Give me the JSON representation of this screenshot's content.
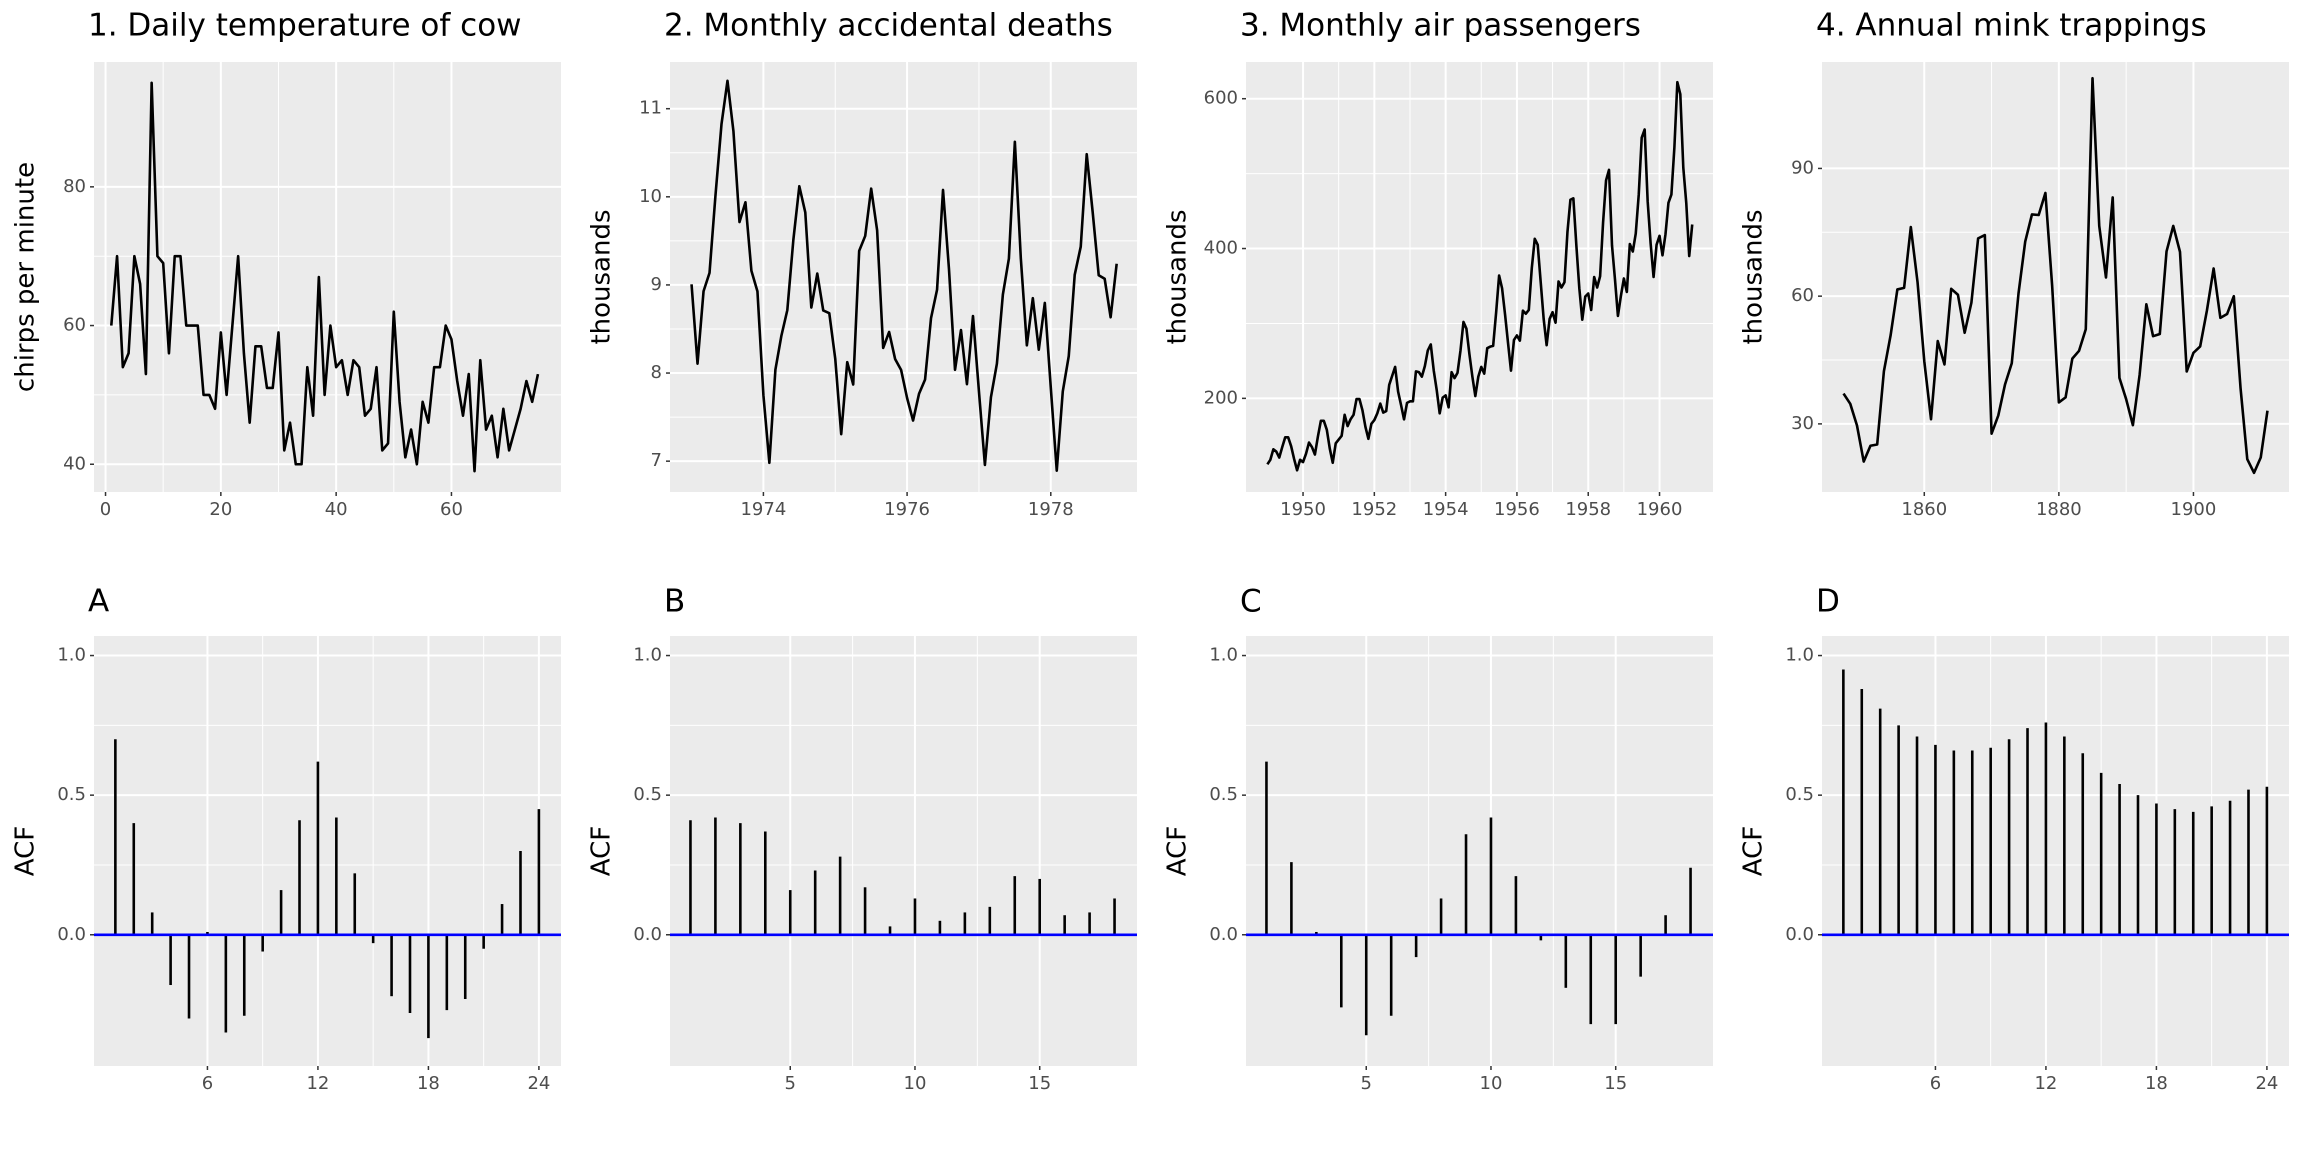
{
  "chart_data": [
    {
      "type": "line",
      "title": "1. Daily temperature of cow",
      "ylabel": "chirps per minute",
      "color": "#000000",
      "grid": true,
      "x": [
        1,
        2,
        3,
        4,
        5,
        6,
        7,
        8,
        9,
        10,
        11,
        12,
        13,
        14,
        15,
        16,
        17,
        18,
        19,
        20,
        21,
        22,
        23,
        24,
        25,
        26,
        27,
        28,
        29,
        30,
        31,
        32,
        33,
        34,
        35,
        36,
        37,
        38,
        39,
        40,
        41,
        42,
        43,
        44,
        45,
        46,
        47,
        48,
        49,
        50,
        51,
        52,
        53,
        54,
        55,
        56,
        57,
        58,
        59,
        60,
        61,
        62,
        63,
        64,
        65,
        66,
        67,
        68,
        69,
        70,
        71,
        72,
        73,
        74,
        75
      ],
      "values": [
        60,
        70,
        54,
        56,
        70,
        66,
        53,
        95,
        70,
        69,
        56,
        70,
        70,
        60,
        60,
        60,
        50,
        50,
        48,
        59,
        50,
        60,
        70,
        56,
        46,
        57,
        57,
        51,
        51,
        59,
        42,
        46,
        40,
        40,
        54,
        47,
        67,
        50,
        60,
        54,
        55,
        50,
        55,
        54,
        47,
        48,
        54,
        42,
        43,
        62,
        49,
        41,
        45,
        40,
        49,
        46,
        54,
        54,
        60,
        58,
        52,
        47,
        53,
        39,
        55,
        45,
        47,
        41,
        48,
        42,
        45,
        48,
        52,
        49,
        53
      ],
      "xlim": [
        -2,
        79
      ],
      "ylim": [
        36,
        98
      ],
      "xticks": [
        0,
        20,
        40,
        60
      ],
      "yticks": [
        40,
        60,
        80
      ]
    },
    {
      "type": "line",
      "title": "2. Monthly accidental deaths",
      "ylabel": "thousands",
      "color": "#000000",
      "grid": true,
      "x": [
        1973,
        1973.083,
        1973.167,
        1973.25,
        1973.333,
        1973.417,
        1973.5,
        1973.583,
        1973.667,
        1973.75,
        1973.833,
        1973.917,
        1974,
        1974.083,
        1974.167,
        1974.25,
        1974.333,
        1974.417,
        1974.5,
        1974.583,
        1974.667,
        1974.75,
        1974.833,
        1974.917,
        1975,
        1975.083,
        1975.167,
        1975.25,
        1975.333,
        1975.417,
        1975.5,
        1975.583,
        1975.667,
        1975.75,
        1975.833,
        1975.917,
        1976,
        1976.083,
        1976.167,
        1976.25,
        1976.333,
        1976.417,
        1976.5,
        1976.583,
        1976.667,
        1976.75,
        1976.833,
        1976.917,
        1977,
        1977.083,
        1977.167,
        1977.25,
        1977.333,
        1977.417,
        1977.5,
        1977.583,
        1977.667,
        1977.75,
        1977.833,
        1977.917,
        1978,
        1978.083,
        1978.167,
        1978.25,
        1978.333,
        1978.417,
        1978.5,
        1978.583,
        1978.667,
        1978.75,
        1978.833,
        1978.917
      ],
      "values": [
        9.007,
        8.106,
        8.928,
        9.137,
        10.017,
        10.826,
        11.317,
        10.744,
        9.713,
        9.938,
        9.161,
        8.927,
        7.75,
        6.981,
        8.038,
        8.422,
        8.714,
        9.512,
        10.12,
        9.823,
        8.743,
        9.129,
        8.71,
        8.68,
        8.162,
        7.306,
        8.124,
        7.87,
        9.387,
        9.556,
        10.093,
        9.62,
        8.285,
        8.466,
        8.16,
        8.034,
        7.717,
        7.461,
        7.767,
        7.925,
        8.623,
        8.945,
        10.078,
        9.179,
        8.037,
        8.488,
        7.874,
        8.647,
        7.792,
        6.957,
        7.726,
        8.106,
        8.89,
        9.299,
        10.625,
        9.302,
        8.314,
        8.85,
        8.265,
        8.796,
        7.836,
        6.892,
        7.791,
        8.192,
        9.115,
        9.434,
        10.484,
        9.827,
        9.11,
        9.07,
        8.633,
        9.24
      ],
      "xlim": [
        1972.7,
        1979.2
      ],
      "ylim": [
        6.65,
        11.53
      ],
      "xticks": [
        1974,
        1976,
        1978
      ],
      "yticks": [
        7,
        8,
        9,
        10,
        11
      ]
    },
    {
      "type": "line",
      "title": "3. Monthly air passengers",
      "ylabel": "thousands",
      "color": "#000000",
      "grid": true,
      "x": [
        1949,
        1949.083,
        1949.167,
        1949.25,
        1949.333,
        1949.417,
        1949.5,
        1949.583,
        1949.667,
        1949.75,
        1949.833,
        1949.917,
        1950,
        1950.083,
        1950.167,
        1950.25,
        1950.333,
        1950.417,
        1950.5,
        1950.583,
        1950.667,
        1950.75,
        1950.833,
        1950.917,
        1951,
        1951.083,
        1951.167,
        1951.25,
        1951.333,
        1951.417,
        1951.5,
        1951.583,
        1951.667,
        1951.75,
        1951.833,
        1951.917,
        1952,
        1952.083,
        1952.167,
        1952.25,
        1952.333,
        1952.417,
        1952.5,
        1952.583,
        1952.667,
        1952.75,
        1952.833,
        1952.917,
        1953,
        1953.083,
        1953.167,
        1953.25,
        1953.333,
        1953.417,
        1953.5,
        1953.583,
        1953.667,
        1953.75,
        1953.833,
        1953.917,
        1954,
        1954.083,
        1954.167,
        1954.25,
        1954.333,
        1954.417,
        1954.5,
        1954.583,
        1954.667,
        1954.75,
        1954.833,
        1954.917,
        1955,
        1955.083,
        1955.167,
        1955.25,
        1955.333,
        1955.417,
        1955.5,
        1955.583,
        1955.667,
        1955.75,
        1955.833,
        1955.917,
        1956,
        1956.083,
        1956.167,
        1956.25,
        1956.333,
        1956.417,
        1956.5,
        1956.583,
        1956.667,
        1956.75,
        1956.833,
        1956.917,
        1957,
        1957.083,
        1957.167,
        1957.25,
        1957.333,
        1957.417,
        1957.5,
        1957.583,
        1957.667,
        1957.75,
        1957.833,
        1957.917,
        1958,
        1958.083,
        1958.167,
        1958.25,
        1958.333,
        1958.417,
        1958.5,
        1958.583,
        1958.667,
        1958.75,
        1958.833,
        1958.917,
        1959,
        1959.083,
        1959.167,
        1959.25,
        1959.333,
        1959.417,
        1959.5,
        1959.583,
        1959.667,
        1959.75,
        1959.833,
        1959.917,
        1960,
        1960.083,
        1960.167,
        1960.25,
        1960.333,
        1960.417,
        1960.5,
        1960.583,
        1960.667,
        1960.75,
        1960.833,
        1960.917
      ],
      "values": [
        112,
        118,
        132,
        129,
        121,
        135,
        148,
        148,
        136,
        119,
        104,
        118,
        115,
        126,
        141,
        135,
        125,
        149,
        170,
        170,
        158,
        133,
        114,
        140,
        145,
        150,
        178,
        163,
        172,
        178,
        199,
        199,
        184,
        162,
        146,
        166,
        171,
        180,
        193,
        181,
        183,
        218,
        230,
        242,
        209,
        191,
        172,
        194,
        196,
        196,
        236,
        235,
        229,
        243,
        264,
        272,
        237,
        211,
        180,
        201,
        204,
        188,
        235,
        227,
        234,
        264,
        302,
        293,
        259,
        229,
        203,
        229,
        242,
        233,
        267,
        269,
        270,
        315,
        364,
        347,
        312,
        274,
        237,
        278,
        284,
        277,
        317,
        313,
        318,
        374,
        413,
        405,
        355,
        306,
        271,
        306,
        315,
        301,
        356,
        348,
        355,
        422,
        465,
        467,
        404,
        347,
        305,
        336,
        340,
        318,
        362,
        348,
        363,
        435,
        491,
        505,
        404,
        359,
        310,
        337,
        360,
        342,
        406,
        396,
        420,
        472,
        548,
        559,
        463,
        407,
        362,
        405,
        417,
        391,
        419,
        461,
        472,
        535,
        622,
        606,
        508,
        461,
        390,
        432
      ],
      "xlim": [
        1948.4,
        1961.5
      ],
      "ylim": [
        75,
        649
      ],
      "xticks": [
        1950,
        1952,
        1954,
        1956,
        1958,
        1960
      ],
      "yticks": [
        200,
        400,
        600
      ]
    },
    {
      "type": "line",
      "title": "4. Annual mink trappings",
      "ylabel": "thousands",
      "color": "#000000",
      "grid": true,
      "x": [
        1848,
        1849,
        1850,
        1851,
        1852,
        1853,
        1854,
        1855,
        1856,
        1857,
        1858,
        1859,
        1860,
        1861,
        1862,
        1863,
        1864,
        1865,
        1866,
        1867,
        1868,
        1869,
        1870,
        1871,
        1872,
        1873,
        1874,
        1875,
        1876,
        1877,
        1878,
        1879,
        1880,
        1881,
        1882,
        1883,
        1884,
        1885,
        1886,
        1887,
        1888,
        1889,
        1890,
        1891,
        1892,
        1893,
        1894,
        1895,
        1896,
        1897,
        1898,
        1899,
        1900,
        1901,
        1902,
        1903,
        1904,
        1905,
        1906,
        1907,
        1908,
        1909,
        1910,
        1911
      ],
      "values": [
        37.123,
        34.712,
        29.619,
        21.151,
        24.859,
        25.152,
        42.375,
        50.839,
        61.581,
        61.951,
        76.231,
        63.264,
        44.73,
        31.094,
        49.452,
        43.961,
        61.727,
        60.334,
        51.404,
        58.451,
        73.575,
        74.343,
        27.708,
        31.985,
        39.266,
        44.236,
        60.605,
        72.83,
        79.202,
        79.06,
        84.244,
        62.474,
        35.034,
        36.229,
        45.333,
        47.165,
        52.23,
        111.2,
        76.503,
        64.39,
        83.2,
        40.8,
        35.8,
        29.7,
        41.5,
        58.1,
        50.6,
        51.1,
        70.5,
        76.5,
        70.4,
        42.3,
        46.7,
        48.2,
        56.6,
        66.5,
        54.9,
        55.8,
        60,
        38.4,
        21.7,
        18.5,
        22.1,
        33.1
      ],
      "xlim": [
        1844.8,
        1914.2
      ],
      "ylim": [
        14,
        115
      ],
      "xticks": [
        1860,
        1880,
        1900
      ],
      "yticks": [
        30,
        60,
        90
      ]
    },
    {
      "type": "bar",
      "title": "A",
      "ylabel": "ACF",
      "color": "#000000",
      "grid": true,
      "x": [
        1,
        2,
        3,
        4,
        5,
        6,
        7,
        8,
        9,
        10,
        11,
        12,
        13,
        14,
        15,
        16,
        17,
        18,
        19,
        20,
        21,
        22,
        23,
        24
      ],
      "values": [
        0.7,
        0.4,
        0.08,
        -0.18,
        -0.3,
        0.01,
        -0.35,
        -0.29,
        -0.06,
        0.16,
        0.41,
        0.62,
        0.42,
        0.22,
        -0.03,
        -0.22,
        -0.28,
        -0.37,
        -0.27,
        -0.23,
        -0.05,
        0.11,
        0.3,
        0.45
      ],
      "xlim": [
        -0.16,
        25.2
      ],
      "ylim": [
        -0.47,
        1.07
      ],
      "xticks": [
        6,
        12,
        18,
        24
      ],
      "yticks": [
        {
          "value": 0,
          "label": "0.0"
        },
        0.5,
        {
          "value": 1,
          "label": "1.0"
        }
      ]
    },
    {
      "type": "bar",
      "title": "B",
      "ylabel": "ACF",
      "color": "#000000",
      "grid": true,
      "x": [
        1,
        2,
        3,
        4,
        5,
        6,
        7,
        8,
        9,
        10,
        11,
        12,
        13,
        14,
        15,
        16,
        17,
        18
      ],
      "values": [
        0.41,
        0.42,
        0.4,
        0.37,
        0.16,
        0.23,
        0.28,
        0.17,
        0.03,
        0.13,
        0.05,
        0.08,
        0.1,
        0.21,
        0.2,
        0.07,
        0.08,
        0.13
      ],
      "xlim": [
        0.18,
        18.9
      ],
      "ylim": [
        -0.47,
        1.07
      ],
      "xticks": [
        5,
        10,
        15
      ],
      "yticks": [
        {
          "value": 0,
          "label": "0.0"
        },
        0.5,
        {
          "value": 1,
          "label": "1.0"
        }
      ]
    },
    {
      "type": "bar",
      "title": "C",
      "ylabel": "ACF",
      "color": "#000000",
      "grid": true,
      "x": [
        1,
        2,
        3,
        4,
        5,
        6,
        7,
        8,
        9,
        10,
        11,
        12,
        13,
        14,
        15,
        16,
        17,
        18
      ],
      "values": [
        0.62,
        0.26,
        0.01,
        -0.26,
        -0.36,
        -0.29,
        -0.08,
        0.13,
        0.36,
        0.42,
        0.21,
        -0.02,
        -0.19,
        -0.32,
        -0.32,
        -0.15,
        0.07,
        0.24
      ],
      "xlim": [
        0.18,
        18.9
      ],
      "ylim": [
        -0.47,
        1.07
      ],
      "xticks": [
        5,
        10,
        15
      ],
      "yticks": [
        {
          "value": 0,
          "label": "0.0"
        },
        0.5,
        {
          "value": 1,
          "label": "1.0"
        }
      ]
    },
    {
      "type": "bar",
      "title": "D",
      "ylabel": "ACF",
      "color": "#000000",
      "grid": true,
      "x": [
        1,
        2,
        3,
        4,
        5,
        6,
        7,
        8,
        9,
        10,
        11,
        12,
        13,
        14,
        15,
        16,
        17,
        18,
        19,
        20,
        21,
        22,
        23,
        24
      ],
      "values": [
        0.95,
        0.88,
        0.81,
        0.75,
        0.71,
        0.68,
        0.66,
        0.66,
        0.67,
        0.7,
        0.74,
        0.76,
        0.71,
        0.65,
        0.58,
        0.54,
        0.5,
        0.47,
        0.45,
        0.44,
        0.46,
        0.48,
        0.52,
        0.53
      ],
      "xlim": [
        -0.16,
        25.2
      ],
      "ylim": [
        -0.47,
        1.07
      ],
      "xticks": [
        6,
        12,
        18,
        24
      ],
      "yticks": [
        {
          "value": 0,
          "label": "0.0"
        },
        0.5,
        {
          "value": 1,
          "label": "1.0"
        }
      ]
    }
  ]
}
